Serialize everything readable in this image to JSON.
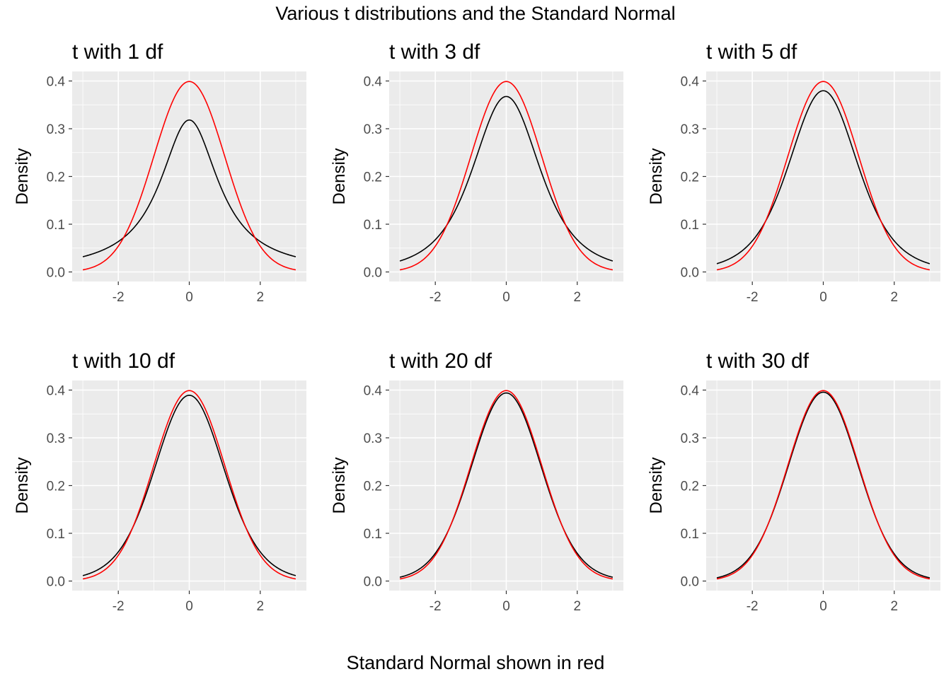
{
  "figure": {
    "title": "Various t distributions and the Standard Normal",
    "caption": "Standard Normal shown in red"
  },
  "colors": {
    "panel_background": "#EBEBEB",
    "grid": "#FFFFFF",
    "t_curve": "#000000",
    "normal_curve": "#FF0000",
    "tick_text": "#4D4D4D"
  },
  "chart_data": [
    {
      "type": "line",
      "title": "t with 1 df",
      "df": 1,
      "xlabel": "",
      "ylabel": "Density",
      "xlim": [
        -3,
        3
      ],
      "ylim": [
        0,
        0.4
      ],
      "xticks": [
        "-2",
        "0",
        "2"
      ],
      "yticks": [
        "0.0",
        "0.1",
        "0.2",
        "0.3",
        "0.4"
      ],
      "x": [
        -3,
        -2.5,
        -2,
        -1.5,
        -1,
        -0.5,
        0,
        0.5,
        1,
        1.5,
        2,
        2.5,
        3
      ],
      "series": [
        {
          "values": [
            0.0318,
            0.0439,
            0.0637,
            0.0979,
            0.1592,
            0.2546,
            0.3183,
            0.2546,
            0.1592,
            0.0979,
            0.0637,
            0.0439,
            0.0318
          ]
        },
        {
          "values": [
            0.0044,
            0.0175,
            0.054,
            0.1295,
            0.242,
            0.3521,
            0.3989,
            0.3521,
            0.242,
            0.1295,
            0.054,
            0.0175,
            0.0044
          ]
        }
      ]
    },
    {
      "type": "line",
      "title": "t with 3 df",
      "df": 3,
      "xlabel": "",
      "ylabel": "Density",
      "xlim": [
        -3,
        3
      ],
      "ylim": [
        0,
        0.4
      ],
      "xticks": [
        "-2",
        "0",
        "2"
      ],
      "yticks": [
        "0.0",
        "0.1",
        "0.2",
        "0.3",
        "0.4"
      ],
      "x": [
        -3,
        -2.5,
        -2,
        -1.5,
        -1,
        -0.5,
        0,
        0.5,
        1,
        1.5,
        2,
        2.5,
        3
      ],
      "series": [
        {
          "values": [
            0.0229,
            0.0354,
            0.0675,
            0.1196,
            0.2067,
            0.3125,
            0.3676,
            0.3125,
            0.2067,
            0.1196,
            0.0675,
            0.0354,
            0.0229
          ]
        },
        {
          "values": [
            0.0044,
            0.0175,
            0.054,
            0.1295,
            0.242,
            0.3521,
            0.3989,
            0.3521,
            0.242,
            0.1295,
            0.054,
            0.0175,
            0.0044
          ]
        }
      ]
    },
    {
      "type": "line",
      "title": "t with 5 df",
      "df": 5,
      "xlabel": "",
      "ylabel": "Density",
      "xlim": [
        -3,
        3
      ],
      "ylim": [
        0,
        0.4
      ],
      "xticks": [
        "-2",
        "0",
        "2"
      ],
      "yticks": [
        "0.0",
        "0.1",
        "0.2",
        "0.3",
        "0.4"
      ],
      "x": [
        -3,
        -2.5,
        -2,
        -1.5,
        -1,
        -0.5,
        0,
        0.5,
        1,
        1.5,
        2,
        2.5,
        3
      ],
      "series": [
        {
          "values": [
            0.0173,
            0.0313,
            0.0651,
            0.1245,
            0.2197,
            0.3279,
            0.3796,
            0.3279,
            0.2197,
            0.1245,
            0.0651,
            0.0313,
            0.0173
          ]
        },
        {
          "values": [
            0.0044,
            0.0175,
            0.054,
            0.1295,
            0.242,
            0.3521,
            0.3989,
            0.3521,
            0.242,
            0.1295,
            0.054,
            0.0175,
            0.0044
          ]
        }
      ]
    },
    {
      "type": "line",
      "title": "t with 10 df",
      "df": 10,
      "xlabel": "",
      "ylabel": "Density",
      "xlim": [
        -3,
        3
      ],
      "ylim": [
        0,
        0.4
      ],
      "xticks": [
        "-2",
        "0",
        "2"
      ],
      "yticks": [
        "0.0",
        "0.1",
        "0.2",
        "0.3",
        "0.4"
      ],
      "x": [
        -3,
        -2.5,
        -2,
        -1.5,
        -1,
        -0.5,
        0,
        0.5,
        1,
        1.5,
        2,
        2.5,
        3
      ],
      "series": [
        {
          "values": [
            0.0114,
            0.0269,
            0.0611,
            0.1274,
            0.2304,
            0.3397,
            0.3891,
            0.3397,
            0.2304,
            0.1274,
            0.0611,
            0.0269,
            0.0114
          ]
        },
        {
          "values": [
            0.0044,
            0.0175,
            0.054,
            0.1295,
            0.242,
            0.3521,
            0.3989,
            0.3521,
            0.242,
            0.1295,
            0.054,
            0.0175,
            0.0044
          ]
        }
      ]
    },
    {
      "type": "line",
      "title": "t with 20 df",
      "df": 20,
      "xlabel": "",
      "ylabel": "Density",
      "xlim": [
        -3,
        3
      ],
      "ylim": [
        0,
        0.4
      ],
      "xticks": [
        "-2",
        "0",
        "2"
      ],
      "yticks": [
        "0.0",
        "0.1",
        "0.2",
        "0.3",
        "0.4"
      ],
      "x": [
        -3,
        -2.5,
        -2,
        -1.5,
        -1,
        -0.5,
        0,
        0.5,
        1,
        1.5,
        2,
        2.5,
        3
      ],
      "series": [
        {
          "values": [
            0.0077,
            0.0221,
            0.0579,
            0.1288,
            0.236,
            0.3458,
            0.394,
            0.3458,
            0.236,
            0.1288,
            0.0579,
            0.0221,
            0.0077
          ]
        },
        {
          "values": [
            0.0044,
            0.0175,
            0.054,
            0.1295,
            0.242,
            0.3521,
            0.3989,
            0.3521,
            0.242,
            0.1295,
            0.054,
            0.0175,
            0.0044
          ]
        }
      ]
    },
    {
      "type": "line",
      "title": "t with 30 df",
      "df": 30,
      "xlabel": "",
      "ylabel": "Density",
      "xlim": [
        -3,
        3
      ],
      "ylim": [
        0,
        0.4
      ],
      "xticks": [
        "-2",
        "0",
        "2"
      ],
      "yticks": [
        "0.0",
        "0.1",
        "0.2",
        "0.3",
        "0.4"
      ],
      "x": [
        -3,
        -2.5,
        -2,
        -1.5,
        -1,
        -0.5,
        0,
        0.5,
        1,
        1.5,
        2,
        2.5,
        3
      ],
      "series": [
        {
          "values": [
            0.0065,
            0.0205,
            0.0567,
            0.1291,
            0.238,
            0.3479,
            0.3956,
            0.3479,
            0.238,
            0.1291,
            0.0567,
            0.0205,
            0.0065
          ]
        },
        {
          "values": [
            0.0044,
            0.0175,
            0.054,
            0.1295,
            0.242,
            0.3521,
            0.3989,
            0.3521,
            0.242,
            0.1295,
            0.054,
            0.0175,
            0.0044
          ]
        }
      ]
    }
  ]
}
